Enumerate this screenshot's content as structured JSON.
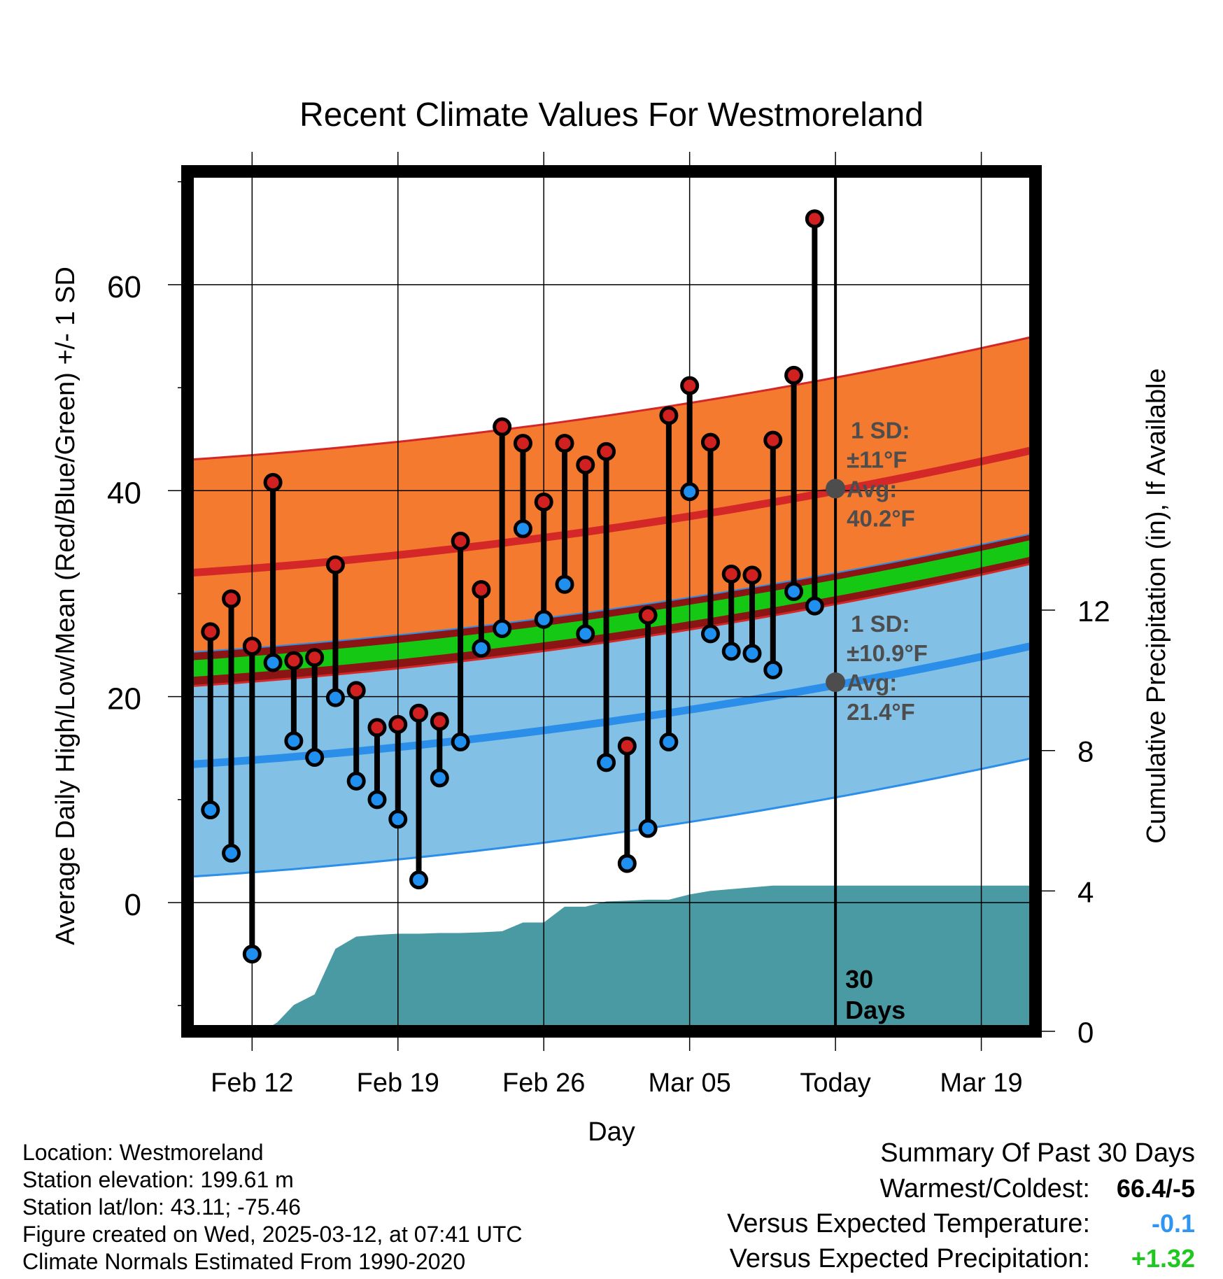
{
  "chart_data": {
    "type": "line",
    "title": "Recent Climate Values For Westmoreland",
    "xlabel": "Day",
    "ylabel": "Average Daily High/Low/Mean (Red/Blue/Green) +/- 1 SD",
    "y2label": "Cumulative Precipitation (in), If Available",
    "x_ticks": [
      "Feb 12",
      "Feb 19",
      "Feb 26",
      "Mar 05",
      "Today",
      "Mar 19"
    ],
    "y_ticks": [
      "0",
      "20",
      "40",
      "60"
    ],
    "y2_ticks": [
      "0",
      "4",
      "8",
      "12"
    ],
    "ylim": [
      -12.5,
      71
    ],
    "y2lim": [
      0,
      24.5
    ],
    "xlim": [
      -3.1,
      37.6
    ],
    "days_note": "x is day offset from Feb 12",
    "daily_high": [
      26.3,
      29.5,
      24.9,
      40.8,
      23.5,
      23.8,
      32.8,
      20.6,
      17.0,
      17.3,
      18.4,
      17.6,
      35.1,
      30.4,
      46.2,
      44.6,
      38.9,
      44.6,
      42.5,
      43.8,
      15.2,
      27.9,
      47.3,
      50.2,
      44.7,
      31.9,
      31.8,
      44.9,
      51.2,
      66.4
    ],
    "daily_low": [
      9.0,
      4.8,
      -5.0,
      23.3,
      15.7,
      14.1,
      19.9,
      11.8,
      10.0,
      8.1,
      2.2,
      12.1,
      15.6,
      24.7,
      26.6,
      36.3,
      27.5,
      30.9,
      26.1,
      13.6,
      3.8,
      7.2,
      15.6,
      39.9,
      26.1,
      24.4,
      24.2,
      22.6,
      30.2,
      28.8
    ],
    "normal_high_avg": [
      32.0,
      44.0
    ],
    "normal_low_avg": [
      13.4,
      25.0
    ],
    "normal_mean_avg": [
      22.7,
      34.5
    ],
    "normal_high_sd": 11,
    "normal_low_sd": 10.9,
    "today_marker": {
      "label": "30\nDays"
    },
    "annot_high": {
      "sd": "1 SD:",
      "sd_value": "±11°F",
      "avg": "Avg:",
      "avg_value": "40.2°F",
      "value": 40.2
    },
    "annot_low": {
      "sd": "1 SD:",
      "sd_value": "±10.9°F",
      "avg": "Avg:",
      "avg_value": "21.4°F",
      "value": 21.4
    },
    "precip_cumulative": {
      "x": [
        0.5,
        1.2,
        2.0,
        3.0,
        4.0,
        5.0,
        6.0,
        7.0,
        8.0,
        9.0,
        10.0,
        11.0,
        12.0,
        13.0,
        14.0,
        15.0,
        16.0,
        17.0,
        18.0,
        19.0,
        20.0,
        21.0,
        22.0,
        23.0,
        24.0,
        25.0,
        26.0,
        27.0,
        28.0,
        29.0,
        37.6
      ],
      "y": [
        0.0,
        0.25,
        0.75,
        1.05,
        2.35,
        2.7,
        2.75,
        2.78,
        2.78,
        2.8,
        2.8,
        2.82,
        2.85,
        3.1,
        3.1,
        3.55,
        3.55,
        3.7,
        3.72,
        3.75,
        3.75,
        3.9,
        4.0,
        4.05,
        4.1,
        4.15,
        4.15,
        4.15,
        4.15,
        4.15,
        4.15
      ]
    }
  },
  "footer": {
    "location": "Location: Westmoreland",
    "elevation": "Station elevation: 199.61 m",
    "latlon": "Station lat/lon: 43.11; -75.46",
    "created": "Figure created on Wed, 2025-03-12, at 07:41 UTC",
    "normals": "Climate Normals Estimated From 1990-2020"
  },
  "summary": {
    "title": "Summary Of Past 30 Days",
    "warmest_label": "Warmest/Coldest:",
    "warmest_value": "66.4/-5",
    "temp_label": "Versus Expected Temperature:",
    "temp_value": "-0.1",
    "precip_label": "Versus Expected Precipitation:",
    "precip_value": "+1.32"
  },
  "colors": {
    "high_band": "#f47a30",
    "low_band": "#82c0e6",
    "overlap_band": "#8b1414",
    "mean_band": "#14c814",
    "high_line": "#d42828",
    "low_line": "#2b8ee8",
    "precip_fill": "#4a9aa4",
    "high_marker": "#d02020",
    "low_marker": "#2090f0",
    "today_dot": "#4d4d4d",
    "temp_summary": "#2e95f0",
    "precip_summary": "#1ec81e"
  }
}
